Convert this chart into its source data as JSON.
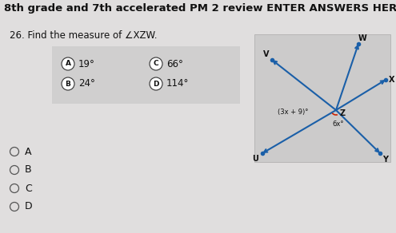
{
  "title": "8th grade and 7th accelerated PM 2 review ENTER ANSWERS HERE",
  "title_fontsize": 9.5,
  "question": "26. Find the measure of ∠XZW.",
  "question_fontsize": 8.5,
  "bg_color": "#e0dede",
  "option_box_color": "#d0cfcf",
  "diagram_bg": "#cccbcb",
  "line_color": "#1a5fa8",
  "angle_label1": "(3x + 9)°",
  "angle_label2": "6x°",
  "font_color": "#111111",
  "arc_color": "#cc2200",
  "options_A": "19°",
  "options_B": "24°",
  "options_C": "66°",
  "options_D": "114°",
  "radio_labels": [
    "A",
    "B",
    "C",
    "D"
  ]
}
